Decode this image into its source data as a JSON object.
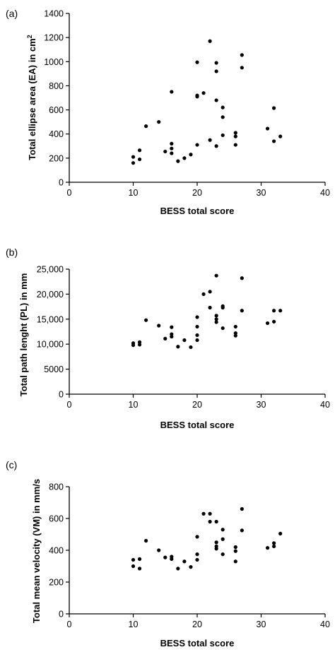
{
  "chart_data": [
    {
      "type": "scatter",
      "panel_label": "(a)",
      "xlabel": "BESS total score",
      "ylabel": "Total ellipse area (EA) in cm",
      "ylabel_sup": "2",
      "xlim": [
        0,
        40
      ],
      "ylim": [
        0,
        1400
      ],
      "xticks": [
        0,
        10,
        20,
        30,
        40
      ],
      "yticks": [
        0,
        200,
        400,
        600,
        800,
        1000,
        1200,
        1400
      ],
      "ytick_labels": [
        "0",
        "200",
        "400",
        "600",
        "800",
        "1000",
        "1200",
        "1400"
      ],
      "grid": false,
      "points": [
        [
          10,
          160
        ],
        [
          10,
          210
        ],
        [
          11,
          190
        ],
        [
          11,
          265
        ],
        [
          12,
          465
        ],
        [
          14,
          500
        ],
        [
          15,
          255
        ],
        [
          16,
          750
        ],
        [
          16,
          320
        ],
        [
          16,
          280
        ],
        [
          16,
          240
        ],
        [
          17,
          175
        ],
        [
          18,
          200
        ],
        [
          19,
          230
        ],
        [
          20,
          995
        ],
        [
          20,
          720
        ],
        [
          20,
          710
        ],
        [
          20,
          310
        ],
        [
          21,
          740
        ],
        [
          22,
          1170
        ],
        [
          22,
          350
        ],
        [
          23,
          990
        ],
        [
          23,
          920
        ],
        [
          23,
          680
        ],
        [
          23,
          300
        ],
        [
          24,
          620
        ],
        [
          24,
          540
        ],
        [
          24,
          390
        ],
        [
          26,
          410
        ],
        [
          26,
          380
        ],
        [
          26,
          310
        ],
        [
          27,
          1055
        ],
        [
          27,
          950
        ],
        [
          31,
          445
        ],
        [
          32,
          615
        ],
        [
          32,
          340
        ],
        [
          33,
          380
        ]
      ]
    },
    {
      "type": "scatter",
      "panel_label": "(b)",
      "xlabel": "BESS total score",
      "ylabel": "Total path lenght (PL) in mm",
      "xlim": [
        0,
        40
      ],
      "ylim": [
        0,
        25000
      ],
      "xticks": [
        0,
        10,
        20,
        30,
        40
      ],
      "yticks": [
        0,
        5000,
        10000,
        15000,
        20000,
        25000
      ],
      "ytick_labels": [
        "0",
        "5000",
        "10,000",
        "15,000",
        "20,000",
        "25,000"
      ],
      "grid": false,
      "points": [
        [
          10,
          10200
        ],
        [
          10,
          9800
        ],
        [
          11,
          10400
        ],
        [
          11,
          9900
        ],
        [
          12,
          14800
        ],
        [
          14,
          13700
        ],
        [
          15,
          11100
        ],
        [
          16,
          13400
        ],
        [
          16,
          12000
        ],
        [
          16,
          11500
        ],
        [
          17,
          9500
        ],
        [
          18,
          10800
        ],
        [
          19,
          9400
        ],
        [
          20,
          15400
        ],
        [
          20,
          13500
        ],
        [
          20,
          11800
        ],
        [
          20,
          10800
        ],
        [
          21,
          20000
        ],
        [
          22,
          20500
        ],
        [
          22,
          17300
        ],
        [
          23,
          23700
        ],
        [
          23,
          15700
        ],
        [
          23,
          15000
        ],
        [
          23,
          14400
        ],
        [
          24,
          17600
        ],
        [
          24,
          17300
        ],
        [
          24,
          13200
        ],
        [
          26,
          13500
        ],
        [
          26,
          12200
        ],
        [
          26,
          11700
        ],
        [
          27,
          23200
        ],
        [
          27,
          16700
        ],
        [
          31,
          14200
        ],
        [
          32,
          16700
        ],
        [
          32,
          14500
        ],
        [
          33,
          16700
        ]
      ]
    },
    {
      "type": "scatter",
      "panel_label": "(c)",
      "xlabel": "BESS total score",
      "ylabel": "Total mean velocity (VM) in mm/s",
      "xlim": [
        0,
        40
      ],
      "ylim": [
        0,
        800
      ],
      "xticks": [
        0,
        10,
        20,
        30,
        40
      ],
      "yticks": [
        0,
        200,
        400,
        600,
        800
      ],
      "ytick_labels": [
        "0",
        "200",
        "400",
        "600",
        "800"
      ],
      "grid": false,
      "points": [
        [
          10,
          340
        ],
        [
          10,
          300
        ],
        [
          11,
          345
        ],
        [
          11,
          285
        ],
        [
          12,
          460
        ],
        [
          14,
          400
        ],
        [
          15,
          355
        ],
        [
          16,
          360
        ],
        [
          16,
          345
        ],
        [
          17,
          285
        ],
        [
          18,
          330
        ],
        [
          19,
          295
        ],
        [
          20,
          485
        ],
        [
          20,
          375
        ],
        [
          20,
          340
        ],
        [
          21,
          630
        ],
        [
          22,
          630
        ],
        [
          22,
          580
        ],
        [
          23,
          580
        ],
        [
          23,
          450
        ],
        [
          23,
          425
        ],
        [
          23,
          410
        ],
        [
          24,
          530
        ],
        [
          24,
          470
        ],
        [
          24,
          375
        ],
        [
          26,
          420
        ],
        [
          26,
          395
        ],
        [
          26,
          330
        ],
        [
          27,
          660
        ],
        [
          27,
          525
        ],
        [
          31,
          415
        ],
        [
          32,
          445
        ],
        [
          32,
          425
        ],
        [
          33,
          505
        ]
      ]
    }
  ]
}
